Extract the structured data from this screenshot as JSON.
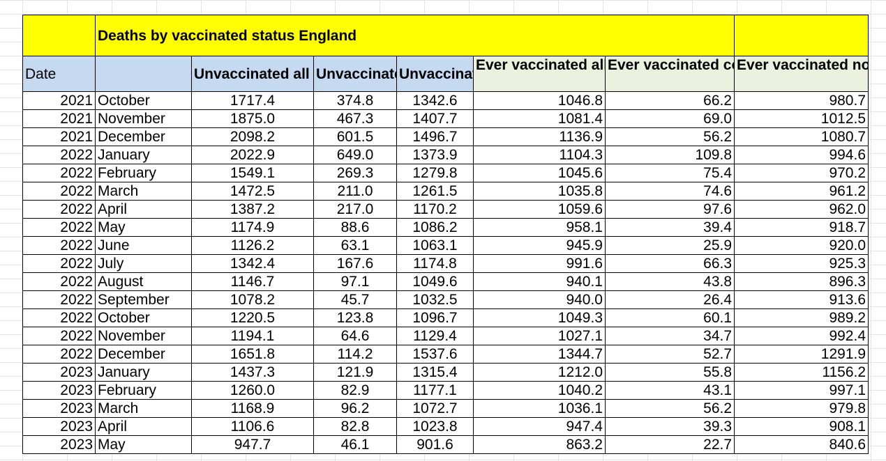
{
  "title": "Deaths by vaccinated status England",
  "headers": {
    "date": "Date",
    "unvax_all": "Unvaccinated all cause",
    "unvax_covid": "Unvaccinated covid",
    "unvax_non": "Unvaccinated non covid",
    "ever_all": "Ever vaccinated all cause",
    "ever_covid": "Ever vaccinated covid",
    "ever_non": "Ever vaccinated non covid"
  },
  "rows": [
    {
      "year": "2021",
      "month": "October",
      "unvax_all": "1717.4",
      "unvax_covid": "374.8",
      "unvax_non": "1342.6",
      "ever_all": "1046.8",
      "ever_covid": "66.2",
      "ever_non": "980.7"
    },
    {
      "year": "2021",
      "month": "November",
      "unvax_all": "1875.0",
      "unvax_covid": "467.3",
      "unvax_non": "1407.7",
      "ever_all": "1081.4",
      "ever_covid": "69.0",
      "ever_non": "1012.5"
    },
    {
      "year": "2021",
      "month": "December",
      "unvax_all": "2098.2",
      "unvax_covid": "601.5",
      "unvax_non": "1496.7",
      "ever_all": "1136.9",
      "ever_covid": "56.2",
      "ever_non": "1080.7"
    },
    {
      "year": "2022",
      "month": "January",
      "unvax_all": "2022.9",
      "unvax_covid": "649.0",
      "unvax_non": "1373.9",
      "ever_all": "1104.3",
      "ever_covid": "109.8",
      "ever_non": "994.6"
    },
    {
      "year": "2022",
      "month": "February",
      "unvax_all": "1549.1",
      "unvax_covid": "269.3",
      "unvax_non": "1279.8",
      "ever_all": "1045.6",
      "ever_covid": "75.4",
      "ever_non": "970.2"
    },
    {
      "year": "2022",
      "month": "March",
      "unvax_all": "1472.5",
      "unvax_covid": "211.0",
      "unvax_non": "1261.5",
      "ever_all": "1035.8",
      "ever_covid": "74.6",
      "ever_non": "961.2"
    },
    {
      "year": "2022",
      "month": "April",
      "unvax_all": "1387.2",
      "unvax_covid": "217.0",
      "unvax_non": "1170.2",
      "ever_all": "1059.6",
      "ever_covid": "97.6",
      "ever_non": "962.0"
    },
    {
      "year": "2022",
      "month": "May",
      "unvax_all": "1174.9",
      "unvax_covid": "88.6",
      "unvax_non": "1086.2",
      "ever_all": "958.1",
      "ever_covid": "39.4",
      "ever_non": "918.7"
    },
    {
      "year": "2022",
      "month": "June",
      "unvax_all": "1126.2",
      "unvax_covid": "63.1",
      "unvax_non": "1063.1",
      "ever_all": "945.9",
      "ever_covid": "25.9",
      "ever_non": "920.0"
    },
    {
      "year": "2022",
      "month": "July",
      "unvax_all": "1342.4",
      "unvax_covid": "167.6",
      "unvax_non": "1174.8",
      "ever_all": "991.6",
      "ever_covid": "66.3",
      "ever_non": "925.3"
    },
    {
      "year": "2022",
      "month": "August",
      "unvax_all": "1146.7",
      "unvax_covid": "97.1",
      "unvax_non": "1049.6",
      "ever_all": "940.1",
      "ever_covid": "43.8",
      "ever_non": "896.3"
    },
    {
      "year": "2022",
      "month": "September",
      "unvax_all": "1078.2",
      "unvax_covid": "45.7",
      "unvax_non": "1032.5",
      "ever_all": "940.0",
      "ever_covid": "26.4",
      "ever_non": "913.6"
    },
    {
      "year": "2022",
      "month": "October",
      "unvax_all": "1220.5",
      "unvax_covid": "123.8",
      "unvax_non": "1096.7",
      "ever_all": "1049.3",
      "ever_covid": "60.1",
      "ever_non": "989.2"
    },
    {
      "year": "2022",
      "month": "November",
      "unvax_all": "1194.1",
      "unvax_covid": "64.6",
      "unvax_non": "1129.4",
      "ever_all": "1027.1",
      "ever_covid": "34.7",
      "ever_non": "992.4"
    },
    {
      "year": "2022",
      "month": "December",
      "unvax_all": "1651.8",
      "unvax_covid": "114.2",
      "unvax_non": "1537.6",
      "ever_all": "1344.7",
      "ever_covid": "52.7",
      "ever_non": "1291.9"
    },
    {
      "year": "2023",
      "month": "January",
      "unvax_all": "1437.3",
      "unvax_covid": "121.9",
      "unvax_non": "1315.4",
      "ever_all": "1212.0",
      "ever_covid": "55.8",
      "ever_non": "1156.2"
    },
    {
      "year": "2023",
      "month": "February",
      "unvax_all": "1260.0",
      "unvax_covid": "82.9",
      "unvax_non": "1177.1",
      "ever_all": "1040.2",
      "ever_covid": "43.1",
      "ever_non": "997.1"
    },
    {
      "year": "2023",
      "month": "March",
      "unvax_all": "1168.9",
      "unvax_covid": "96.2",
      "unvax_non": "1072.7",
      "ever_all": "1036.1",
      "ever_covid": "56.2",
      "ever_non": "979.8"
    },
    {
      "year": "2023",
      "month": "April",
      "unvax_all": "1106.6",
      "unvax_covid": "82.8",
      "unvax_non": "1023.8",
      "ever_all": "947.4",
      "ever_covid": "39.3",
      "ever_non": "908.1"
    },
    {
      "year": "2023",
      "month": "May",
      "unvax_all": "947.7",
      "unvax_covid": "46.1",
      "unvax_non": "901.6",
      "ever_all": "863.2",
      "ever_covid": "22.7",
      "ever_non": "840.6"
    }
  ],
  "colors": {
    "title_fill": "#ffff00",
    "header_blue": "#c5d9f1",
    "header_green": "#ebf1de",
    "gridline": "#e3e3e3"
  }
}
